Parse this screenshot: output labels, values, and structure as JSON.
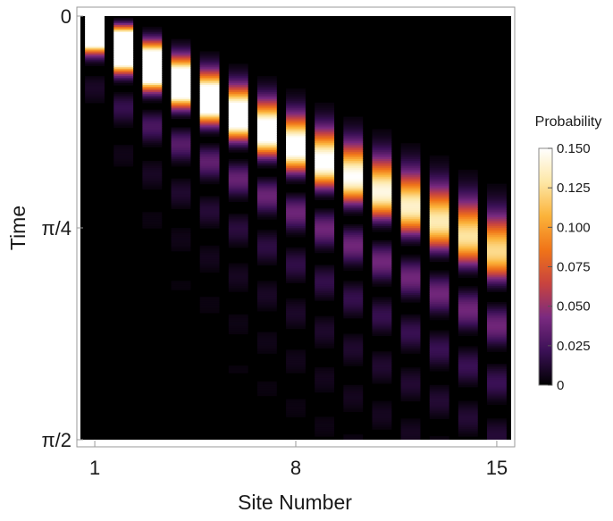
{
  "chart_data": {
    "type": "heatmap",
    "title": "",
    "xlabel": "Site Number",
    "ylabel": "Time",
    "x_ticks": [
      "1",
      "8",
      "15"
    ],
    "x_tick_values": [
      1,
      8,
      15
    ],
    "y_ticks": [
      "0",
      "π/4",
      "π/2"
    ],
    "y_tick_values": [
      0,
      0.7854,
      1.5708
    ],
    "xlim": [
      0.5,
      15.5
    ],
    "ylim": [
      0,
      1.5708
    ],
    "y_inverted": true,
    "sites": 15,
    "colorbar": {
      "title": "Probability",
      "ticks": [
        "0",
        "0.025",
        "0.050",
        "0.075",
        "0.100",
        "0.125",
        "0.150"
      ],
      "tick_values": [
        0,
        0.025,
        0.05,
        0.075,
        0.1,
        0.125,
        0.15
      ],
      "range": [
        0,
        0.15
      ],
      "colormap": [
        "#000000",
        "#3a1055",
        "#7a2a80",
        "#c8433f",
        "#f07418",
        "#fbb33a",
        "#fde7a6",
        "#ffffff"
      ]
    },
    "description_of_values": "Probability |psi_n(t)|^2 on each site over time; wavefront spreads from site 1 to site 15 between t=0 and t=pi/2."
  }
}
